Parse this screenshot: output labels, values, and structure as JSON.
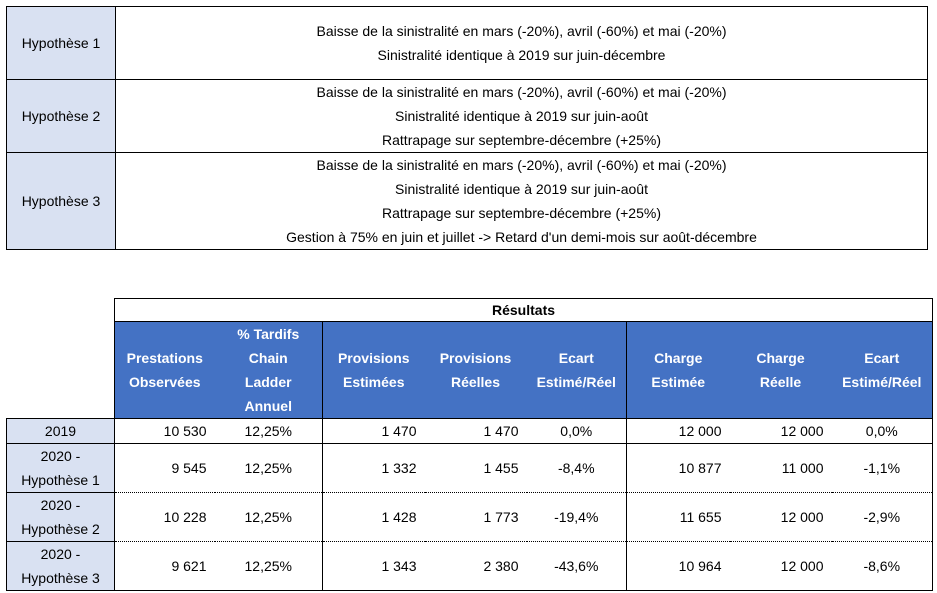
{
  "hypotheses": [
    {
      "label": "Hypothèse 1",
      "lines": [
        "Baisse de la sinistralité en mars (-20%), avril (-60%) et mai (-20%)",
        "Sinistralité identique à 2019 sur juin-décembre"
      ]
    },
    {
      "label": "Hypothèse 2",
      "lines": [
        "Baisse de la sinistralité en mars (-20%), avril (-60%) et mai (-20%)",
        "Sinistralité identique à 2019 sur juin-août",
        "Rattrapage sur septembre-décembre (+25%)"
      ]
    },
    {
      "label": "Hypothèse 3",
      "lines": [
        "Baisse de la sinistralité en mars (-20%), avril (-60%) et mai (-20%)",
        "Sinistralité identique à 2019 sur juin-août",
        "Rattrapage sur septembre-décembre (+25%)",
        "Gestion à 75% en juin et juillet -> Retard d'un demi-mois sur août-décembre"
      ]
    }
  ],
  "results": {
    "title": "Résultats",
    "headers": [
      [
        "Prestations",
        "Observées"
      ],
      [
        "% Tardifs",
        "Chain",
        "Ladder",
        "Annuel"
      ],
      [
        "Provisions",
        "Estimées"
      ],
      [
        "Provisions",
        "Réelles"
      ],
      [
        "Ecart",
        "Estimé/Réel"
      ],
      [
        "Charge",
        "Estimée"
      ],
      [
        "Charge",
        "Réelle"
      ],
      [
        "Ecart",
        "Estimé/Réel"
      ]
    ],
    "rows": [
      {
        "label": [
          "2019"
        ],
        "values": [
          "10 530",
          "12,25%",
          "1 470",
          "1 470",
          "0,0%",
          "12 000",
          "12 000",
          "0,0%"
        ]
      },
      {
        "label": [
          "2020 -",
          "Hypothèse 1"
        ],
        "values": [
          "9 545",
          "12,25%",
          "1 332",
          "1 455",
          "-8,4%",
          "10 877",
          "11 000",
          "-1,1%"
        ]
      },
      {
        "label": [
          "2020 -",
          "Hypothèse 2"
        ],
        "values": [
          "10 228",
          "12,25%",
          "1 428",
          "1 773",
          "-19,4%",
          "11 655",
          "12 000",
          "-2,9%"
        ]
      },
      {
        "label": [
          "2020 -",
          "Hypothèse 3"
        ],
        "values": [
          "9 621",
          "12,25%",
          "1 343",
          "2 380",
          "-43,6%",
          "10 964",
          "12 000",
          "-8,6%"
        ]
      }
    ]
  },
  "colors": {
    "header_blue": "#4472c4",
    "label_blue": "#d9e1f2"
  }
}
